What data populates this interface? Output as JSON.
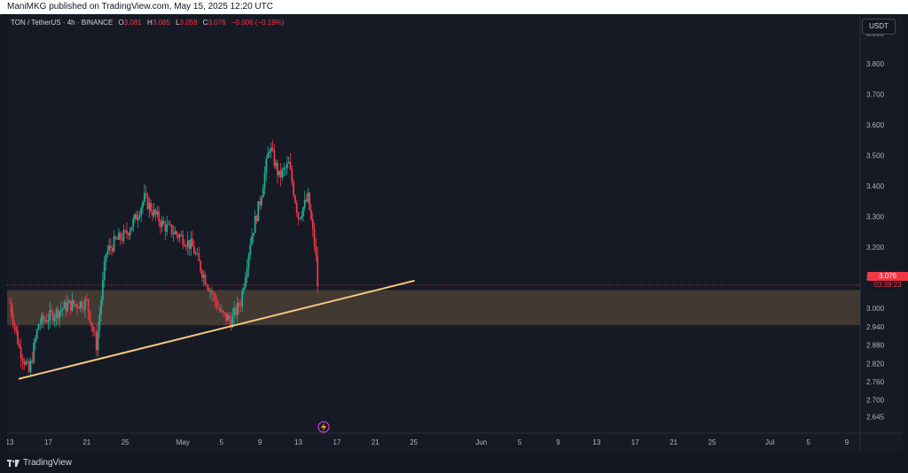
{
  "header": {
    "published": "ManiMKG published on TradingView.com, May 15, 2025 12:20 UTC"
  },
  "legend": {
    "symbol": "TON / TetherUS · 4h · BINANCE",
    "open_label": "O",
    "open": "3.081",
    "high_label": "H",
    "high": "3.085",
    "low_label": "L",
    "low": "3.059",
    "close_label": "C",
    "close": "3.076",
    "change": "−0.006 (−0.19%)"
  },
  "currency_button": "USDT",
  "last_price": {
    "price": "3.076",
    "countdown": "03:39:23"
  },
  "footer": {
    "brand": "TradingView"
  },
  "colors": {
    "up": "#22ab94",
    "down": "#f23645",
    "trendline": "#f6c97f",
    "zone": "#4a4036",
    "background": "#161a25"
  },
  "chart_data": {
    "type": "candlestick",
    "symbol": "TON/USDT",
    "interval": "4h",
    "y_ticks": [
      "3.900",
      "3.800",
      "3.700",
      "3.600",
      "3.500",
      "3.400",
      "3.300",
      "3.200",
      "3.100",
      "3.000",
      "2.940",
      "2.880",
      "2.820",
      "2.760",
      "2.700",
      "2.645"
    ],
    "x_ticks": [
      "13",
      "17",
      "21",
      "25",
      "May",
      "5",
      "9",
      "13",
      "17",
      "21",
      "25",
      "Jun",
      "5",
      "9",
      "13",
      "17",
      "21",
      "25",
      "Jul",
      "5",
      "9"
    ],
    "price_path": [
      [
        "Apr 13",
        3.02
      ],
      [
        "Apr 14",
        2.87
      ],
      [
        "Apr 15",
        2.79
      ],
      [
        "Apr 16",
        2.95
      ],
      [
        "Apr 18",
        2.99
      ],
      [
        "Apr 19",
        3.01
      ],
      [
        "Apr 21",
        3.02
      ],
      [
        "Apr 22",
        2.88
      ],
      [
        "Apr 23",
        3.18
      ],
      [
        "Apr 24",
        3.22
      ],
      [
        "Apr 25",
        3.24
      ],
      [
        "Apr 26",
        3.29
      ],
      [
        "Apr 27",
        3.36
      ],
      [
        "Apr 28",
        3.31
      ],
      [
        "Apr 29",
        3.27
      ],
      [
        "Apr 30",
        3.25
      ],
      [
        "May 1",
        3.23
      ],
      [
        "May 2",
        3.2
      ],
      [
        "May 3",
        3.12
      ],
      [
        "May 4",
        3.05
      ],
      [
        "May 5",
        2.98
      ],
      [
        "May 6",
        2.96
      ],
      [
        "May 7",
        3.02
      ],
      [
        "May 8",
        3.22
      ],
      [
        "May 9",
        3.35
      ],
      [
        "May 10",
        3.53
      ],
      [
        "May 11",
        3.43
      ],
      [
        "May 12",
        3.47
      ],
      [
        "May 13",
        3.3
      ],
      [
        "May 14",
        3.36
      ],
      [
        "May 14 20h",
        3.18
      ],
      [
        "May 15",
        3.076
      ]
    ],
    "support_zone": [
      2.945,
      3.06
    ],
    "trendline": {
      "from": [
        "Apr 14",
        2.77
      ],
      "to": [
        "May 25",
        3.09
      ]
    },
    "last_price": 3.076
  }
}
